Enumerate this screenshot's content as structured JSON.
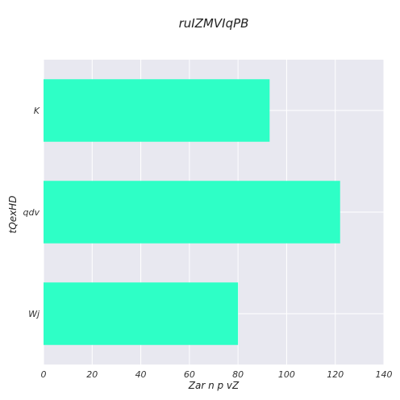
{
  "chart_data": {
    "type": "bar",
    "orientation": "horizontal",
    "title": "ruIZMVIqPB",
    "xlabel": "Zar n p vZ",
    "ylabel": "tQexHD",
    "categories": [
      "K",
      "qdv",
      "Wj"
    ],
    "values": [
      93,
      122,
      80
    ],
    "xlim": [
      0,
      140
    ],
    "xticks": [
      "0",
      "20",
      "40",
      "60",
      "80",
      "100",
      "120",
      "140"
    ],
    "grid": true,
    "colors": {
      "bar": "#2effc6",
      "plot_background": "#e8e8f0",
      "grid": "#ffffff"
    }
  }
}
